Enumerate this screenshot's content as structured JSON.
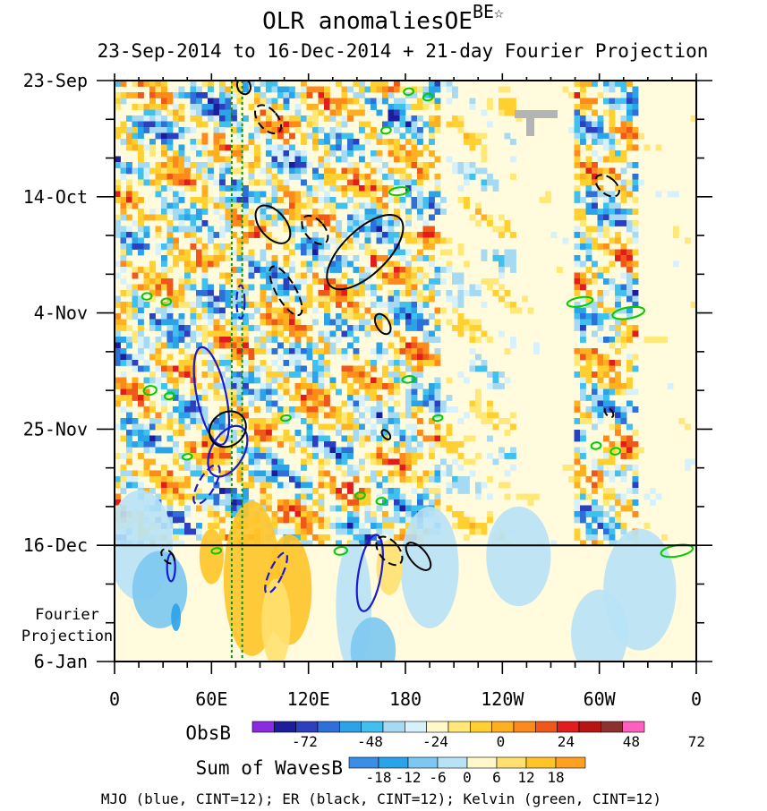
{
  "chart_data": {
    "type": "heatmap",
    "title": "OLR anomaliesOE",
    "title_superscript": "BE",
    "subtitle": "23-Sep-2014 to 16-Dec-2014 + 21-day Fourier Projection",
    "xlabel": "",
    "ylabel": "",
    "x_ticks": [
      {
        "lon": 0,
        "label": "0"
      },
      {
        "lon": 60,
        "label": "60E"
      },
      {
        "lon": 120,
        "label": "120E"
      },
      {
        "lon": 180,
        "label": "180"
      },
      {
        "lon": 240,
        "label": "120W"
      },
      {
        "lon": 300,
        "label": "60W"
      },
      {
        "lon": 360,
        "label": "0"
      }
    ],
    "xlim": [
      0,
      360
    ],
    "y_ticks": [
      {
        "day": 0,
        "label": "23-Sep"
      },
      {
        "day": 21,
        "label": "14-Oct"
      },
      {
        "day": 42,
        "label": "4-Nov"
      },
      {
        "day": 63,
        "label": "25-Nov"
      },
      {
        "day": 84,
        "label": "16-Dec"
      },
      {
        "day": 105,
        "label": "6-Jan"
      }
    ],
    "ylim": [
      0,
      105
    ],
    "observed_end_day": 84,
    "projection_label": [
      "Fourier",
      "Projection"
    ],
    "reference_lons": [
      72.5,
      79
    ],
    "obs_colorbar": {
      "label": "ObsB",
      "levels": [
        "-72",
        "-48",
        "-24",
        "0",
        "24",
        "48",
        "72"
      ],
      "colors": [
        "#8a2be2",
        "#1c1c9c",
        "#2b3fbf",
        "#2e6fd8",
        "#2aa3e8",
        "#3fc0ee",
        "#a6daf2",
        "#d6f1fb",
        "#fff8c8",
        "#ffe878",
        "#ffd030",
        "#ffb020",
        "#ff8a1c",
        "#f0581a",
        "#e21c1c",
        "#b81414",
        "#8c3030",
        "#ff60c0"
      ]
    },
    "waves_colorbar": {
      "label": "Sum of WavesB",
      "levels": [
        "-18",
        "-12",
        "-6",
        "0",
        "6",
        "12",
        "18"
      ],
      "colors": [
        "#3a8ee8",
        "#2aa3e8",
        "#7cc8f0",
        "#b8e2f6",
        "#fff8c8",
        "#ffe070",
        "#ffc428",
        "#ffa020"
      ]
    },
    "footnote": "MJO (blue, CINT=12); ER (black, CINT=12); Kelvin (green, CINT=12)",
    "wave_colors": {
      "mjo": "#1a1ad0",
      "er": "#000000",
      "kelvin": "#00cc00",
      "reference": "#1a8a1a"
    },
    "mjo_contours": [
      {
        "lon": 60,
        "day": 57,
        "rlon": 9,
        "rday": 9,
        "angle": -12,
        "dashed": false
      },
      {
        "lon": 70,
        "day": 67,
        "rlon": 10,
        "rday": 5,
        "angle": 30,
        "dashed": false
      },
      {
        "lon": 57,
        "day": 73,
        "rlon": 5,
        "rday": 4,
        "angle": 30,
        "dashed": true
      },
      {
        "lon": 78,
        "day": 40,
        "rlon": 2.5,
        "rday": 3,
        "angle": 0,
        "dashed": true
      },
      {
        "lon": 100,
        "day": 89,
        "rlon": 4,
        "rday": 4,
        "angle": 25,
        "dashed": true
      },
      {
        "lon": 158,
        "day": 89,
        "rlon": 7,
        "rday": 7,
        "angle": 10,
        "dashed": false
      },
      {
        "lon": 35,
        "day": 88,
        "rlon": 2.5,
        "rday": 2.5,
        "angle": 0,
        "dashed": false
      }
    ],
    "er_contours": [
      {
        "lon": 80,
        "day": 1,
        "rlon": 4,
        "rday": 1.5,
        "angle": -20,
        "dashed": false
      },
      {
        "lon": 95,
        "day": 7,
        "rlon": 6,
        "rday": 3,
        "angle": -40,
        "dashed": true
      },
      {
        "lon": 98,
        "day": 26,
        "rlon": 8,
        "rday": 4,
        "angle": -40,
        "dashed": false
      },
      {
        "lon": 124,
        "day": 27,
        "rlon": 6,
        "rday": 3,
        "angle": -40,
        "dashed": true
      },
      {
        "lon": 106,
        "day": 38,
        "rlon": 6,
        "rday": 5,
        "angle": -30,
        "dashed": true
      },
      {
        "lon": 155,
        "day": 31,
        "rlon": 30,
        "rday": 4,
        "angle": -44,
        "dashed": false
      },
      {
        "lon": 166,
        "day": 44,
        "rlon": 4,
        "rday": 2,
        "angle": -30,
        "dashed": false
      },
      {
        "lon": 305,
        "day": 19,
        "rlon": 5,
        "rday": 2.5,
        "angle": -50,
        "dashed": true
      },
      {
        "lon": 70,
        "day": 63,
        "rlon": 12,
        "rday": 3,
        "angle": -40,
        "dashed": false
      },
      {
        "lon": 170,
        "day": 85,
        "rlon": 6,
        "rday": 3,
        "angle": -40,
        "dashed": true
      },
      {
        "lon": 188,
        "day": 86,
        "rlon": 5,
        "rday": 3,
        "angle": -40,
        "dashed": false
      },
      {
        "lon": 33,
        "day": 86,
        "rlon": 3,
        "rday": 1.5,
        "angle": -40,
        "dashed": true
      },
      {
        "lon": 168,
        "day": 64,
        "rlon": 2,
        "rday": 1,
        "angle": -40,
        "dashed": false
      },
      {
        "lon": 306,
        "day": 60,
        "rlon": 2,
        "rday": 1,
        "angle": -40,
        "dashed": true
      }
    ],
    "kelvin_contours": [
      {
        "lon": 182,
        "day": 2,
        "rlon": 3,
        "rday": 0.6,
        "angle": -8
      },
      {
        "lon": 194,
        "day": 3,
        "rlon": 3,
        "rday": 0.6,
        "angle": -8
      },
      {
        "lon": 168,
        "day": 9,
        "rlon": 3,
        "rday": 0.6,
        "angle": -8
      },
      {
        "lon": 176,
        "day": 20,
        "rlon": 6,
        "rday": 0.7,
        "angle": -8
      },
      {
        "lon": 20,
        "day": 39,
        "rlon": 3,
        "rday": 0.6,
        "angle": -5
      },
      {
        "lon": 32,
        "day": 40,
        "rlon": 3,
        "rday": 0.6,
        "angle": -5
      },
      {
        "lon": 288,
        "day": 40,
        "rlon": 8,
        "rday": 0.8,
        "angle": -10
      },
      {
        "lon": 318,
        "day": 42,
        "rlon": 10,
        "rday": 1,
        "angle": -10
      },
      {
        "lon": 22,
        "day": 56,
        "rlon": 4,
        "rday": 0.8,
        "angle": -10
      },
      {
        "lon": 34,
        "day": 57,
        "rlon": 3,
        "rday": 0.6,
        "angle": -10
      },
      {
        "lon": 182,
        "day": 54,
        "rlon": 4,
        "rday": 0.6,
        "angle": -8
      },
      {
        "lon": 200,
        "day": 61,
        "rlon": 3,
        "rday": 0.5,
        "angle": -8
      },
      {
        "lon": 298,
        "day": 66,
        "rlon": 3,
        "rday": 0.6,
        "angle": -8
      },
      {
        "lon": 310,
        "day": 67,
        "rlon": 3,
        "rday": 0.6,
        "angle": -8
      },
      {
        "lon": 152,
        "day": 75,
        "rlon": 3,
        "rday": 0.6,
        "angle": -8
      },
      {
        "lon": 165,
        "day": 76,
        "rlon": 3,
        "rday": 0.6,
        "angle": -8
      },
      {
        "lon": 140,
        "day": 85,
        "rlon": 4,
        "rday": 0.7,
        "angle": -8
      },
      {
        "lon": 348,
        "day": 85,
        "rlon": 10,
        "rday": 1,
        "angle": -10
      },
      {
        "lon": 45,
        "day": 68,
        "rlon": 3,
        "rday": 0.5,
        "angle": -8
      },
      {
        "lon": 63,
        "day": 85,
        "rlon": 3,
        "rday": 0.5,
        "angle": -8
      },
      {
        "lon": 106,
        "day": 61,
        "rlon": 3,
        "rday": 0.5,
        "angle": -8
      }
    ]
  }
}
